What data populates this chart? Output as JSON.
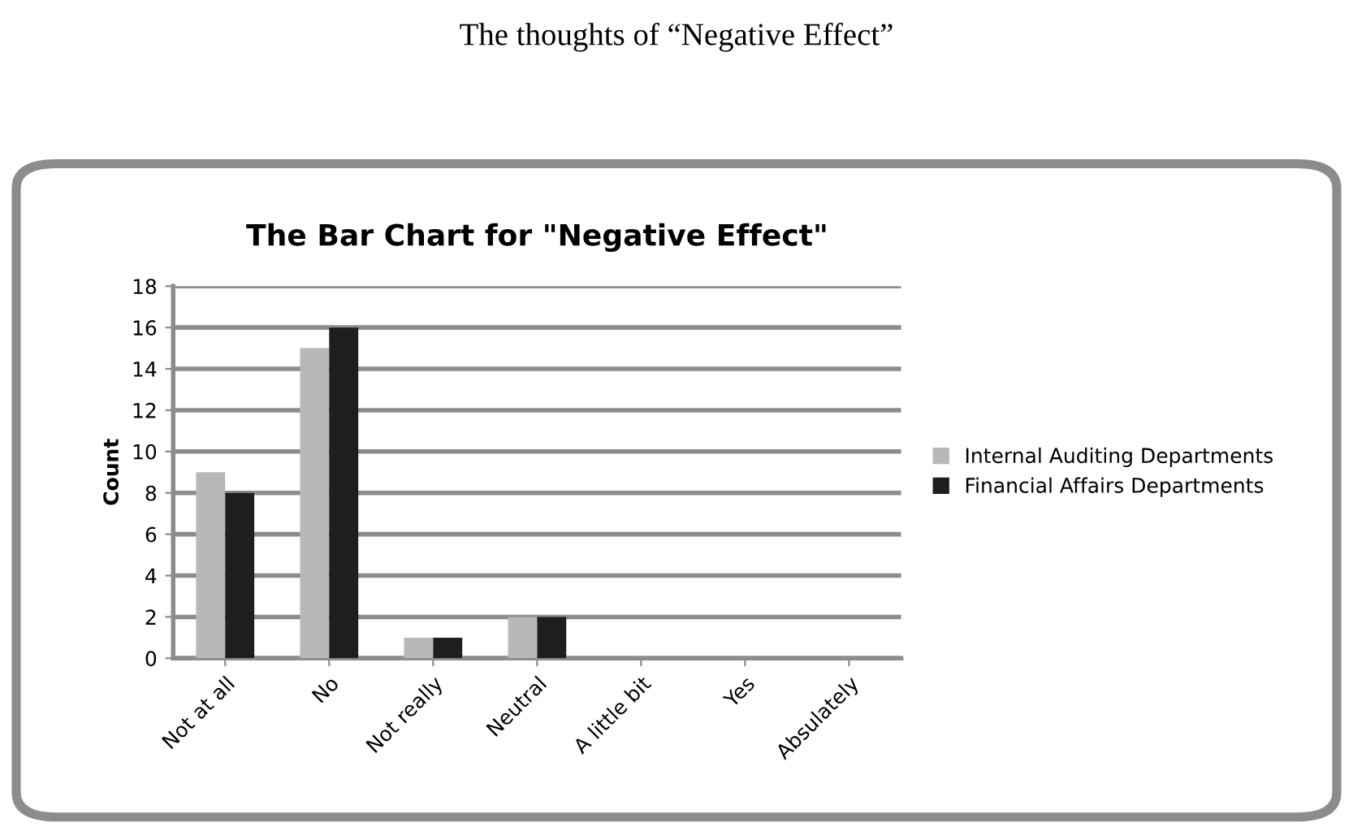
{
  "chart_data": {
    "type": "bar",
    "title": "The Bar Chart for \"Negative Effect\"",
    "annotations": [
      "The thoughts of “Negative Effect”"
    ],
    "ylabel": "Count",
    "categories": [
      "Not at all",
      "No",
      "Not really",
      "Neutral",
      "A little bit",
      "Yes",
      "Absulately"
    ],
    "series": [
      {
        "name": "Internal Auditing Departments",
        "color": "#b8b8b8",
        "values": [
          9,
          15,
          1,
          2,
          0,
          0,
          0
        ]
      },
      {
        "name": "Financial Affairs Departments",
        "color": "#1e1e1e",
        "values": [
          8,
          16,
          1,
          2,
          0,
          0,
          0
        ]
      }
    ],
    "ylim": [
      0,
      18
    ],
    "yticks": [
      0,
      2,
      4,
      6,
      8,
      10,
      12,
      14,
      16,
      18
    ],
    "grid": "y",
    "legend": "right"
  }
}
